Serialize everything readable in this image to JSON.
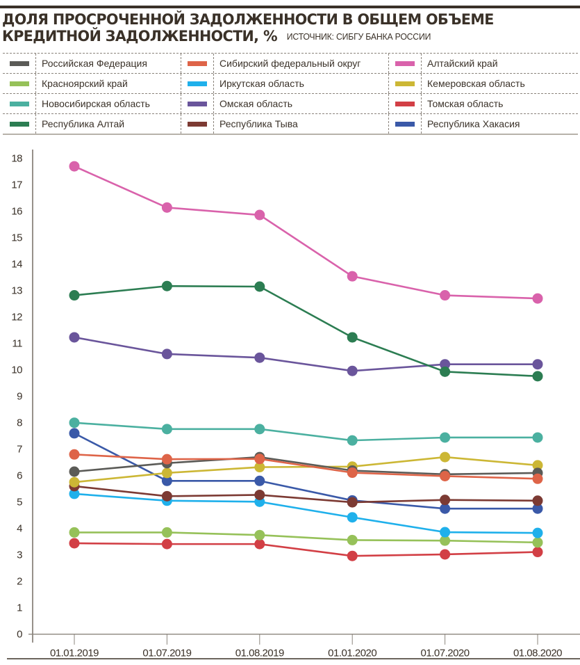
{
  "header": {
    "title": "ДОЛЯ ПРОСРОЧЕННОЙ ЗАДОЛЖЕННОСТИ В ОБЩЕМ ОБЪЕМЕ КРЕДИТНОЙ ЗАДОЛЖЕННОСТИ, %",
    "source": "ИСТОЧНИК: СИБГУ БАНКА РОССИИ"
  },
  "legend": {
    "rows": [
      [
        {
          "label": "Российская Федерация",
          "color": "#5b5b57"
        },
        {
          "label": "Сибирский федеральный округ",
          "color": "#de6448"
        },
        {
          "label": "Алтайский край",
          "color": "#d962ab"
        }
      ],
      [
        {
          "label": "Красноярский край",
          "color": "#96c159"
        },
        {
          "label": "Иркутская область",
          "color": "#1fb0eb"
        },
        {
          "label": "Кемеровская область",
          "color": "#ccb735"
        }
      ],
      [
        {
          "label": "Новосибирская область",
          "color": "#4bb0a0"
        },
        {
          "label": "Омская область",
          "color": "#6a559b"
        },
        {
          "label": "Томская область",
          "color": "#d23f45"
        }
      ],
      [
        {
          "label": "Республика Алтай",
          "color": "#2c7d52"
        },
        {
          "label": "Республика Тыва",
          "color": "#7c3a33"
        },
        {
          "label": "Республика Хакасия",
          "color": "#3a59a8"
        }
      ]
    ]
  },
  "chart_data": {
    "type": "line",
    "title": "Доля просроченной задолженности в общем объеме кредитной задолженности, %",
    "xlabel": "",
    "ylabel": "%",
    "categories": [
      "01.01.2019",
      "01.07.2019",
      "01.08.2019",
      "01.01.2020",
      "01.07.2020",
      "01.08.2020"
    ],
    "ylim": [
      0,
      18
    ],
    "yticks": [
      0,
      1,
      2,
      3,
      4,
      5,
      6,
      7,
      8,
      9,
      10,
      11,
      12,
      13,
      14,
      15,
      16,
      17,
      18
    ],
    "grid": false,
    "legend_position": "top",
    "series": [
      {
        "name": "Томская область",
        "color": "#d23f45",
        "values": [
          3.44,
          3.41,
          3.41,
          2.96,
          3.02,
          3.11
        ]
      },
      {
        "name": "Красноярский край",
        "color": "#96c159",
        "values": [
          3.85,
          3.85,
          3.75,
          3.56,
          3.54,
          3.47
        ]
      },
      {
        "name": "Иркутская область",
        "color": "#1fb0eb",
        "values": [
          5.31,
          5.05,
          5.01,
          4.42,
          3.86,
          3.83
        ]
      },
      {
        "name": "Республика Хакасия",
        "color": "#3a59a8",
        "values": [
          7.6,
          5.8,
          5.8,
          5.06,
          4.75,
          4.75
        ]
      },
      {
        "name": "Республика Тыва",
        "color": "#7c3a33",
        "values": [
          5.6,
          5.22,
          5.27,
          4.99,
          5.08,
          5.05
        ]
      },
      {
        "name": "Кемеровская область",
        "color": "#ccb735",
        "values": [
          5.75,
          6.1,
          6.32,
          6.34,
          6.7,
          6.39
        ]
      },
      {
        "name": "Российская Федерация",
        "color": "#5b5b57",
        "values": [
          6.15,
          6.47,
          6.7,
          6.19,
          6.05,
          6.1
        ]
      },
      {
        "name": "Сибирский федеральный округ",
        "color": "#de6448",
        "values": [
          6.8,
          6.62,
          6.63,
          6.11,
          5.98,
          5.88
        ]
      },
      {
        "name": "Новосибирская область",
        "color": "#4bb0a0",
        "values": [
          8.0,
          7.76,
          7.76,
          7.33,
          7.44,
          7.44
        ]
      },
      {
        "name": "Омская область",
        "color": "#6a559b",
        "values": [
          11.23,
          10.6,
          10.46,
          9.96,
          10.21,
          10.21
        ]
      },
      {
        "name": "Республика Алтай",
        "color": "#2c7d52",
        "values": [
          12.82,
          13.17,
          13.15,
          11.23,
          9.93,
          9.76
        ]
      },
      {
        "name": "Алтайский край",
        "color": "#d962ab",
        "values": [
          17.7,
          16.14,
          15.86,
          13.54,
          12.82,
          12.7
        ]
      }
    ]
  }
}
